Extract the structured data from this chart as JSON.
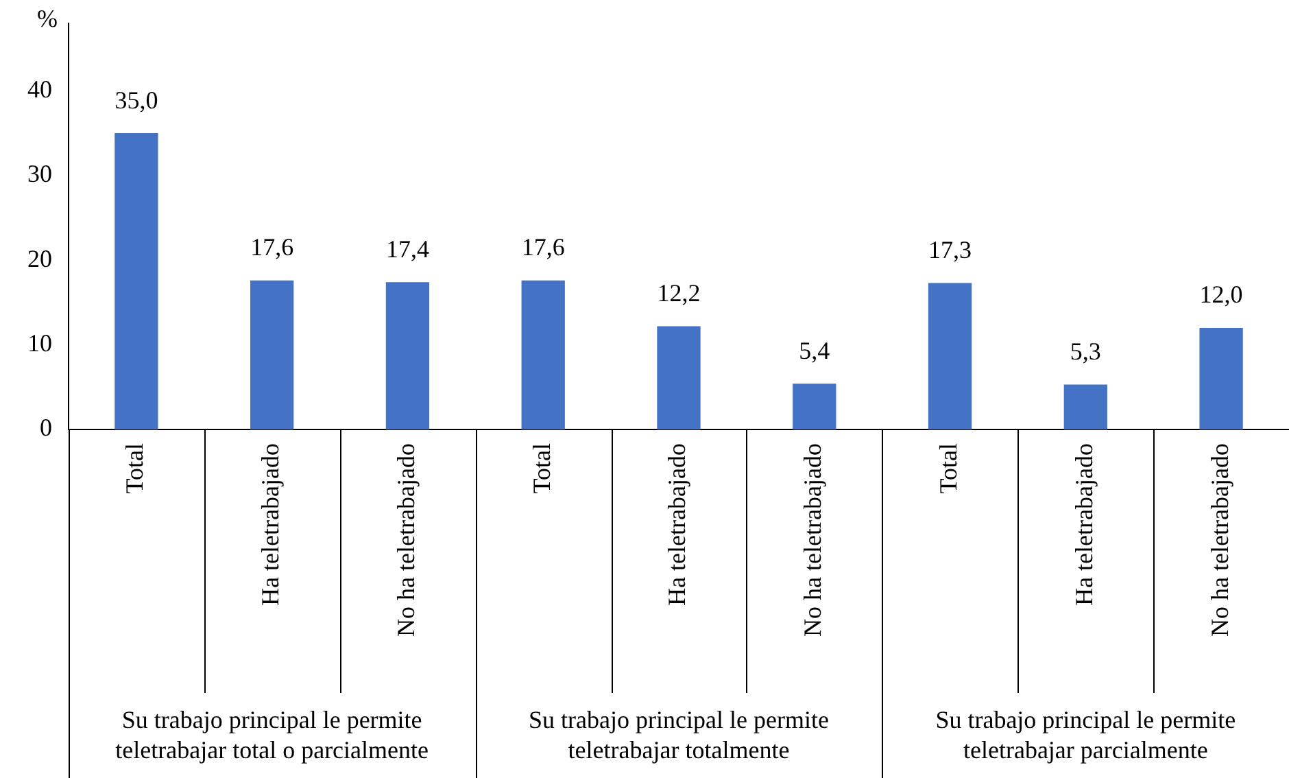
{
  "chart_data": {
    "type": "bar",
    "ylabel": "%",
    "categories": [
      "Total",
      "Ha teletrabajado",
      "No ha teletrabajado",
      "Total",
      "Ha teletrabajado",
      "No ha teletrabajado",
      "Total",
      "Ha teletrabajado",
      "No ha teletrabajado"
    ],
    "values": [
      35.0,
      17.6,
      17.4,
      17.6,
      12.2,
      5.4,
      17.3,
      5.3,
      12.0
    ],
    "value_labels": [
      "35,0",
      "17,6",
      "17,4",
      "17,6",
      "12,2",
      "5,4",
      "17,3",
      "5,3",
      "12,0"
    ],
    "color": "#4472c4",
    "ylim": [
      0,
      48
    ],
    "yticks": [
      0,
      10,
      20,
      30,
      40
    ],
    "annotations": [
      "Su trabajo principal le permite teletrabajar total o parcialmente",
      "Su trabajo principal le permite teletrabajar totalmente",
      "Su trabajo principal le permite teletrabajar parcialmente"
    ],
    "grid": false,
    "legend": false
  }
}
